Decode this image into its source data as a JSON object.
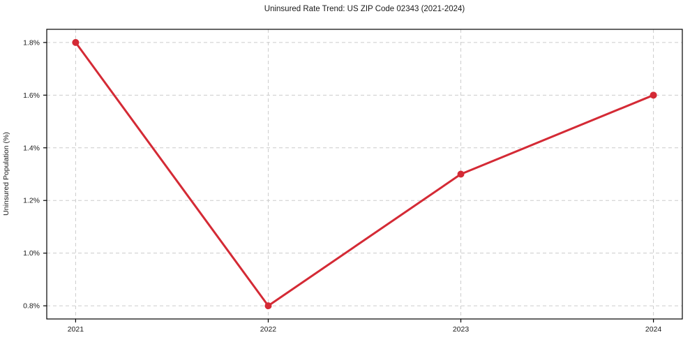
{
  "chart_data": {
    "type": "line",
    "title": "Uninsured Rate Trend: US ZIP Code 02343 (2021-2024)",
    "xlabel": "",
    "ylabel": "Uninsured Population (%)",
    "x": [
      2021,
      2022,
      2023,
      2024
    ],
    "x_tick_labels": [
      "2021",
      "2022",
      "2023",
      "2024"
    ],
    "values": [
      1.8,
      0.8,
      1.3,
      1.6
    ],
    "y_ticks": [
      0.8,
      1.0,
      1.2,
      1.4,
      1.6,
      1.8
    ],
    "y_tick_labels": [
      "0.8%",
      "1.0%",
      "1.2%",
      "1.4%",
      "1.6%",
      "1.8%"
    ],
    "xlim": [
      2020.85,
      2024.15
    ],
    "ylim": [
      0.75,
      1.85
    ],
    "grid": true,
    "grid_style": "dashed",
    "legend": "none",
    "marker": "circle",
    "colors": {
      "line": "#d42a35",
      "grid": "#cccccc",
      "axis": "#000000",
      "text": "#1a1a1a",
      "background": "#ffffff"
    }
  }
}
